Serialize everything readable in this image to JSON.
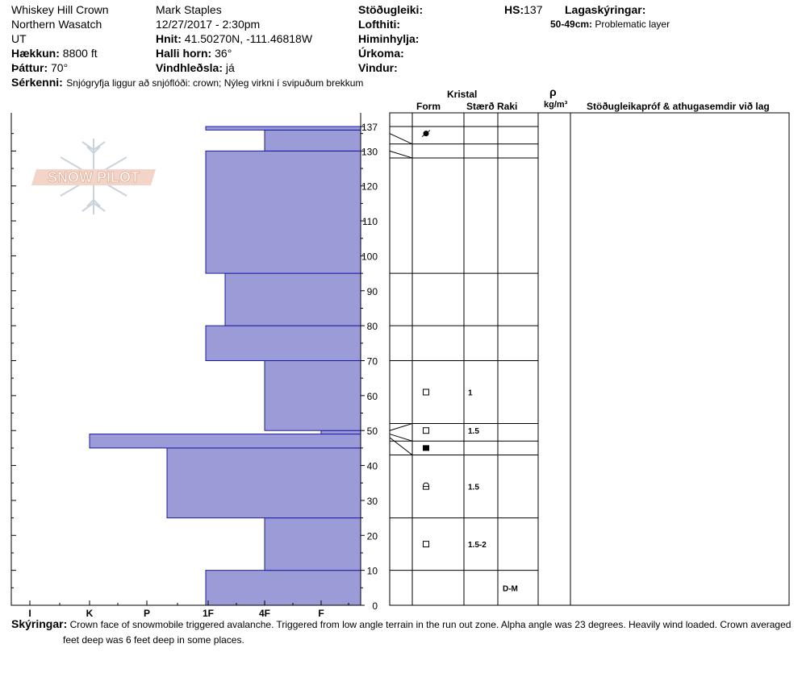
{
  "header": {
    "col1": [
      "Whiskey Hill Crown",
      "Northern Wasatch",
      "UT"
    ],
    "elevation": {
      "label": "Hækkun:",
      "value": "8800 ft"
    },
    "aspect": {
      "label": "Þáttur:",
      "value": "70°"
    },
    "observer": "Mark Staples",
    "datetime": "12/27/2017 - 2:30pm",
    "coords": {
      "label": "Hnit:",
      "value": "41.50270N, -111.46818W"
    },
    "slope": {
      "label": "Halli horn:",
      "value": "36°"
    },
    "windload": {
      "label": "Vindhleðsla:",
      "value": "já"
    },
    "stability_label": "Stöðugleiki:",
    "airtemp_label": "Lofthiti:",
    "sky_label": "Himinhylja:",
    "precip_label": "Úrkoma:",
    "wind_label": "Vindur:",
    "hs": {
      "label": "HS:",
      "value": "137"
    },
    "legend_title": "Lagaskýringar:",
    "legend_item": {
      "range": "50-49cm:",
      "text": "Problematic layer"
    },
    "features": {
      "label": "Sérkenni:",
      "value": "Snjógryfja liggur að snjóflóði: crown; Nýleg virkni í svipuðum brekkum"
    }
  },
  "logo_text": "SNOW PILOT",
  "table_headers": {
    "crystal": "Kristal",
    "form": "Form",
    "size": "Stærð",
    "moisture": "Raki",
    "rho": "ρ",
    "density_unit": "kg/m³",
    "stability_tests": "Stöðugleikapróf & athugasemdir við lag"
  },
  "chart_data": {
    "type": "bar",
    "orientation": "horizontal",
    "description_hint": "hand hardness profile",
    "y_axis": {
      "range": [
        0,
        137
      ],
      "ticks": [
        0,
        10,
        20,
        30,
        40,
        50,
        60,
        70,
        80,
        90,
        100,
        110,
        120,
        130,
        137
      ]
    },
    "x_axis": {
      "ticks": [
        "I",
        "K",
        "P",
        "1F",
        "4F",
        "F"
      ]
    },
    "layers": [
      {
        "bottom": 0,
        "top": 10,
        "hardness": "1F"
      },
      {
        "bottom": 10,
        "top": 25,
        "hardness": "4F"
      },
      {
        "bottom": 25,
        "top": 45,
        "hardness": "P+"
      },
      {
        "bottom": 45,
        "top": 49,
        "hardness": "K"
      },
      {
        "bottom": 49,
        "top": 50,
        "hardness": "F+"
      },
      {
        "bottom": 50,
        "top": 70,
        "hardness": "4F"
      },
      {
        "bottom": 70,
        "top": 80,
        "hardness": "1F"
      },
      {
        "bottom": 80,
        "top": 95,
        "hardness": "1F-"
      },
      {
        "bottom": 95,
        "top": 130,
        "hardness": "1F"
      },
      {
        "bottom": 130,
        "top": 136,
        "hardness": "4F"
      },
      {
        "bottom": 136,
        "top": 137,
        "hardness": "1F"
      }
    ],
    "crystal_rows": [
      {
        "top": 137,
        "bottom": 132
      },
      {
        "top": 132,
        "bottom": 128
      },
      {
        "top": 128,
        "bottom": 95
      },
      {
        "top": 95,
        "bottom": 80
      },
      {
        "top": 80,
        "bottom": 70
      },
      {
        "top": 70,
        "bottom": 52
      },
      {
        "top": 52,
        "bottom": 47
      },
      {
        "top": 47,
        "bottom": 43
      },
      {
        "top": 43,
        "bottom": 25
      },
      {
        "top": 25,
        "bottom": 10
      },
      {
        "top": 10,
        "bottom": 0
      }
    ],
    "crystal_marks": [
      {
        "height": 135,
        "symbol": "decomposing",
        "size": ""
      },
      {
        "height": 61,
        "symbol": "square",
        "size": "1"
      },
      {
        "height": 50,
        "symbol": "square",
        "size": "1.5"
      },
      {
        "height": 45,
        "symbol": "square-filled",
        "size": ""
      },
      {
        "height": 34,
        "symbol": "rounding-facet",
        "size": "1.5"
      },
      {
        "height": 17.5,
        "symbol": "square",
        "size": "1.5-2"
      }
    ],
    "moisture_marks": [
      {
        "height": 5,
        "value": "D-M"
      }
    ]
  },
  "footer": {
    "label": "Skýringar:",
    "line1": "Crown face of snowmobile triggered avalanche. Triggered from low angle terrain in the run out zone. Alpha angle was 23 degrees. Heavily wind loaded. Crown averaged",
    "line2": "feet deep was 6 feet deep in some places."
  }
}
